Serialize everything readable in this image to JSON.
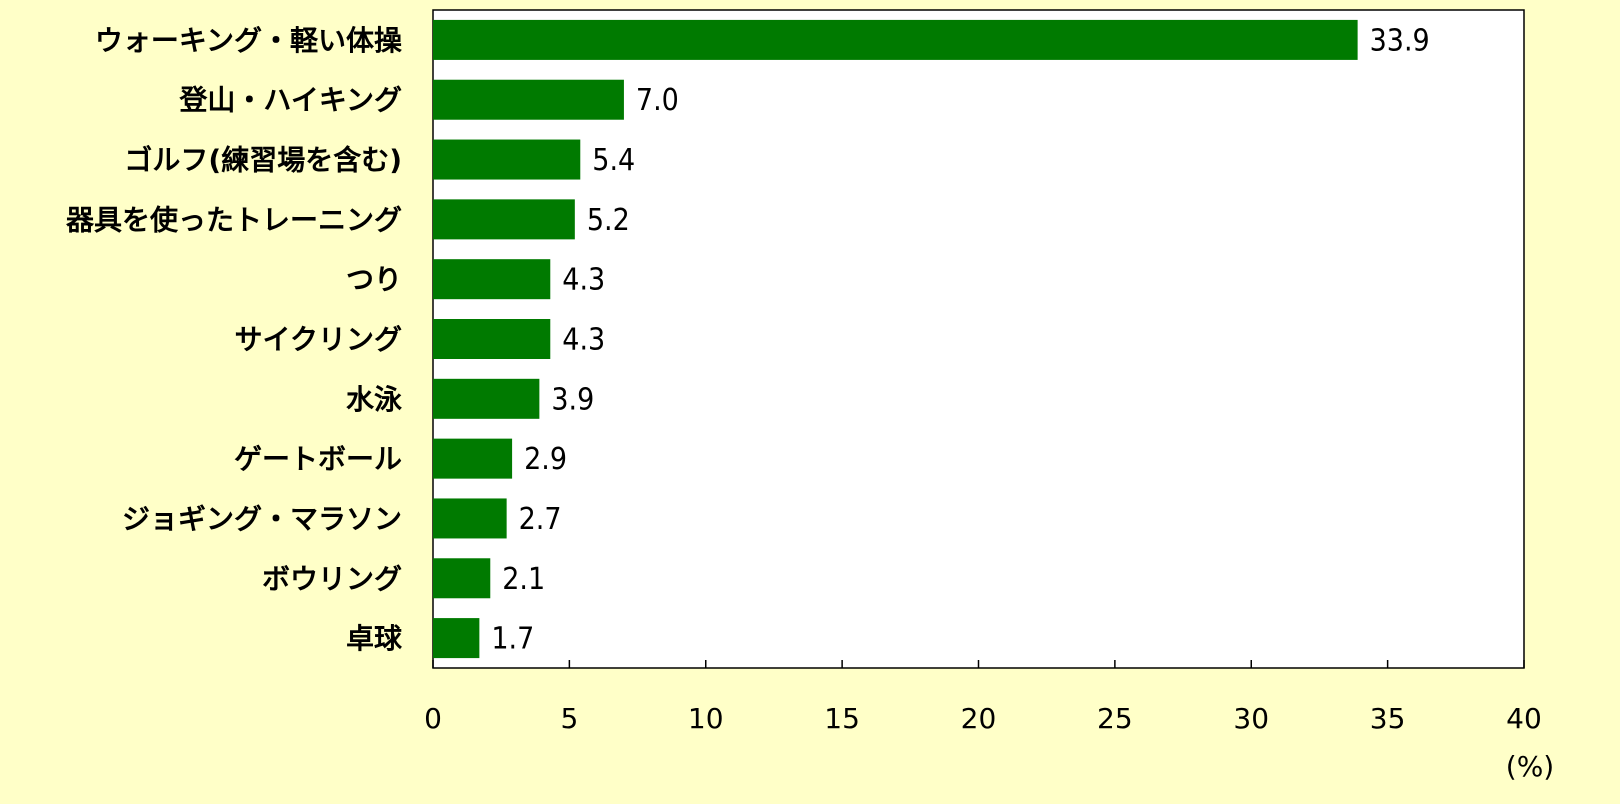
{
  "chart_data": {
    "type": "bar",
    "orientation": "horizontal",
    "categories": [
      "ウォーキング・軽い体操",
      "登山・ハイキング",
      "ゴルフ(練習場を含む)",
      "器具を使ったトレーニング",
      "つり",
      "サイクリング",
      "水泳",
      "ゲートボール",
      "ジョギング・マラソン",
      "ボウリング",
      "卓球"
    ],
    "values": [
      33.9,
      7.0,
      5.4,
      5.2,
      4.3,
      4.3,
      3.9,
      2.9,
      2.7,
      2.1,
      1.7
    ],
    "value_labels": [
      "33.9",
      "7.0",
      "5.4",
      "5.2",
      "4.3",
      "4.3",
      "3.9",
      "2.9",
      "2.7",
      "2.1",
      "1.7"
    ],
    "color": "#007a00",
    "xlim": [
      0,
      40
    ],
    "xticks": [
      0,
      5,
      10,
      15,
      20,
      25,
      30,
      35,
      40
    ],
    "xlabel": "(%)",
    "grid": false
  }
}
